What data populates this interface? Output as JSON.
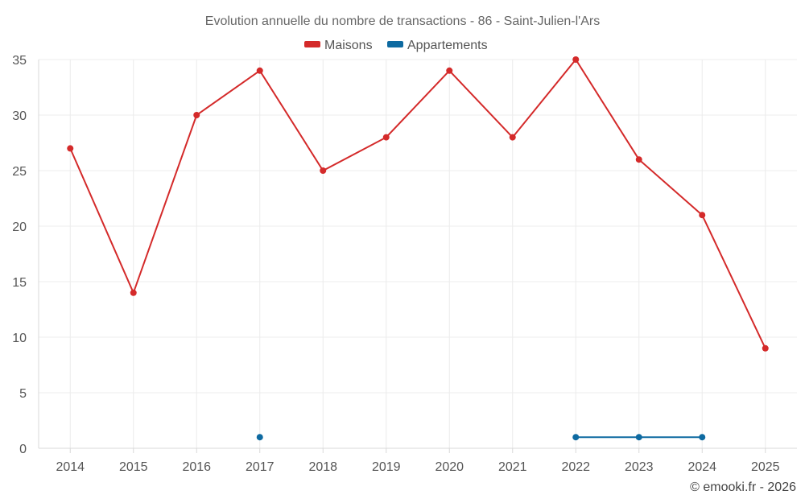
{
  "chart_data": {
    "type": "line",
    "title": "Evolution annuelle du nombre de transactions - 86 - Saint-Julien-l'Ars",
    "categories": [
      "2014",
      "2015",
      "2016",
      "2017",
      "2018",
      "2019",
      "2020",
      "2021",
      "2022",
      "2023",
      "2024",
      "2025"
    ],
    "ylim": [
      0,
      35
    ],
    "yticks": [
      0,
      5,
      10,
      15,
      20,
      25,
      30,
      35
    ],
    "grid": true,
    "legend_position": "top-center",
    "series": [
      {
        "name": "Maisons",
        "color": "#d42a2a",
        "values": [
          27,
          14,
          30,
          34,
          25,
          28,
          34,
          28,
          35,
          26,
          21,
          9
        ]
      },
      {
        "name": "Appartements",
        "color": "#0e6aa1",
        "values": [
          null,
          null,
          null,
          1,
          null,
          null,
          null,
          null,
          1,
          1,
          1,
          null
        ]
      }
    ],
    "credit": "© emooki.fr - 2026"
  }
}
